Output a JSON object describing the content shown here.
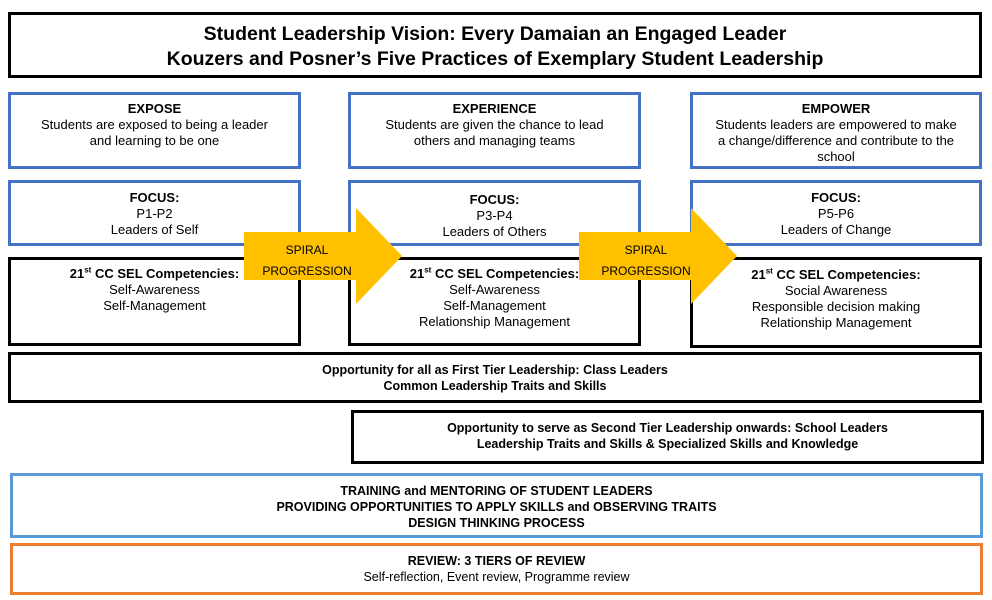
{
  "header": {
    "title_line1": "Student Leadership Vision: Every Damaian an Engaged Leader",
    "title_line2": "Kouzers and Posner’s Five Practices of Exemplary Student Leadership"
  },
  "columns": [
    {
      "heading": "EXPOSE",
      "description": [
        "Students are exposed to being a leader",
        "and learning to be one"
      ],
      "focus_label": "FOCUS:",
      "focus_level": "P1-P2",
      "focus_group": "Leaders of Self",
      "competency_prefix": "21",
      "competency_sup": "st",
      "competency_title": " CC SEL Competencies:",
      "competencies": [
        "Self-Awareness",
        "Self-Management"
      ]
    },
    {
      "heading": "EXPERIENCE",
      "description": [
        "Students are given the chance to lead",
        "others and managing teams"
      ],
      "focus_label": "FOCUS:",
      "focus_level": "P3-P4",
      "focus_group": "Leaders of Others",
      "competency_prefix": "21",
      "competency_sup": "st",
      "competency_title": " CC SEL Competencies:",
      "competencies": [
        "Self-Awareness",
        "Self-Management",
        "Relationship Management"
      ]
    },
    {
      "heading": "EMPOWER",
      "description": [
        "Students leaders are empowered to make",
        "a change/difference and contribute to the",
        "school"
      ],
      "focus_label": "FOCUS:",
      "focus_level": "P5-P6",
      "focus_group": "Leaders of Change",
      "competency_prefix": "21",
      "competency_sup": "st",
      "competency_title": " CC SEL Competencies:",
      "competencies": [
        "Social Awareness",
        "Responsible decision making",
        "Relationship Management"
      ]
    }
  ],
  "arrows": [
    {
      "line1": "SPIRAL",
      "line2": "PROGRESSION",
      "color": "#ffc000"
    },
    {
      "line1": "SPIRAL",
      "line2": "PROGRESSION",
      "color": "#ffc000"
    }
  ],
  "tier1": {
    "line1": "Opportunity for all as First Tier Leadership: Class Leaders",
    "line2": "Common Leadership Traits and Skills"
  },
  "tier2": {
    "line1": "Opportunity to serve as Second Tier Leadership onwards: School Leaders",
    "line2": "Leadership Traits and Skills & Specialized Skills and Knowledge"
  },
  "training": {
    "line1": "TRAINING and MENTORING OF STUDENT LEADERS",
    "line2": "PROVIDING OPPORTUNITIES TO APPLY SKILLS and OBSERVING TRAITS",
    "line3": "DESIGN THINKING PROCESS"
  },
  "review": {
    "title": "REVIEW: 3 TIERS OF REVIEW",
    "details": "Self-reflection, Event review, Programme review"
  },
  "colors": {
    "black_border": "#000000",
    "blue_border": "#4472c4",
    "light_blue_border": "#5b9bd5",
    "orange_border": "#ed7d31",
    "arrow_fill": "#ffc000"
  }
}
